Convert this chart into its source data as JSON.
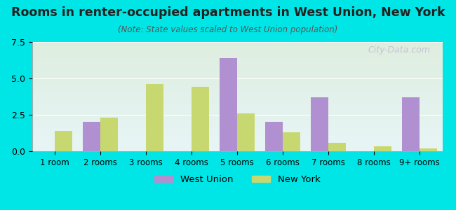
{
  "title": "Rooms in renter-occupied apartments in West Union, New York",
  "subtitle": "(Note: State values scaled to West Union population)",
  "categories": [
    "1 room",
    "2 rooms",
    "3 rooms",
    "4 rooms",
    "5 rooms",
    "6 rooms",
    "7 rooms",
    "8 rooms",
    "9+ rooms"
  ],
  "west_union": [
    0.0,
    2.0,
    0.0,
    0.0,
    6.4,
    2.0,
    3.7,
    0.0,
    3.7
  ],
  "new_york": [
    1.4,
    2.3,
    4.6,
    4.4,
    2.6,
    1.3,
    0.6,
    0.35,
    0.2
  ],
  "west_union_color": "#b090d0",
  "new_york_color": "#c8d870",
  "background_color": "#00e5e5",
  "ylim": [
    0,
    7.5
  ],
  "yticks": [
    0,
    2.5,
    5,
    7.5
  ],
  "bar_width": 0.38,
  "watermark": "City-Data.com",
  "legend_west_union": "West Union",
  "legend_new_york": "New York"
}
